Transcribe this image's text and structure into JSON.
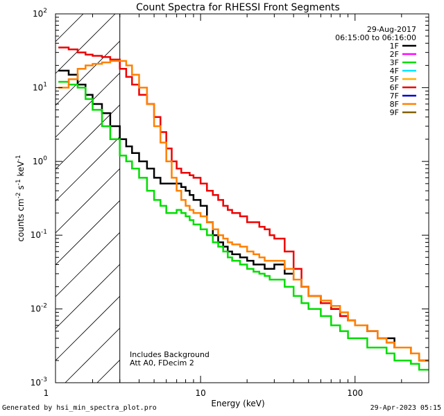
{
  "chart_data": {
    "type": "line",
    "title": "Count Spectra for RHESSI Front Segments",
    "xlabel": "Energy (keV)",
    "ylabel_parts": {
      "prefix": "counts cm",
      "exp1": "-2",
      "mid": " s",
      "exp2": "-1",
      "mid2": " keV",
      "exp3": "-1"
    },
    "xscale": "log",
    "yscale": "log",
    "xlim": [
      1.15,
      300
    ],
    "ylim": [
      0.001,
      100
    ],
    "x_ticks": [
      {
        "value": 1,
        "label": "1"
      },
      {
        "value": 10,
        "label": "10"
      },
      {
        "value": 100,
        "label": "100"
      }
    ],
    "y_ticks": [
      {
        "value": 0.001,
        "base": "10",
        "exp": "-3"
      },
      {
        "value": 0.01,
        "base": "10",
        "exp": "-2"
      },
      {
        "value": 0.1,
        "base": "10",
        "exp": "-1"
      },
      {
        "value": 1,
        "base": "10",
        "exp": "0"
      },
      {
        "value": 10,
        "base": "10",
        "exp": "1"
      },
      {
        "value": 100,
        "base": "10",
        "exp": "2"
      }
    ],
    "shaded_region": {
      "x_range": [
        1.15,
        3
      ],
      "style": "diagonal-hatch"
    },
    "legend_header": [
      "29-Aug-2017",
      "06:15:00 to 06:16:00"
    ],
    "legend": [
      {
        "name": "1F",
        "color": "#000000"
      },
      {
        "name": "2F",
        "color": "#ff00ff"
      },
      {
        "name": "3F",
        "color": "#00dd00"
      },
      {
        "name": "4F",
        "color": "#00e5ff"
      },
      {
        "name": "5F",
        "color": "#ffb000"
      },
      {
        "name": "6F",
        "color": "#ee0000"
      },
      {
        "name": "7F",
        "color": "#0000cc"
      },
      {
        "name": "8F",
        "color": "#ff8000"
      },
      {
        "name": "9F",
        "color": "#806000"
      }
    ],
    "annotation": [
      "Includes Background",
      "Att A0, FDecim 2"
    ],
    "series": [
      {
        "name": "1F",
        "color": "#000000",
        "x": [
          1.2,
          1.4,
          1.6,
          1.8,
          2.0,
          2.3,
          2.6,
          3.0,
          3.3,
          3.6,
          4.0,
          4.5,
          5.0,
          5.5,
          6.0,
          6.5,
          7.0,
          7.5,
          8.0,
          8.5,
          9,
          10,
          11,
          12,
          13,
          14,
          15,
          16,
          18,
          20,
          22,
          24,
          26,
          28,
          30,
          35,
          40,
          45,
          50,
          60,
          70,
          80,
          90,
          100,
          120,
          140,
          160,
          180,
          200,
          230,
          260,
          300
        ],
        "y": [
          17,
          15,
          11,
          8,
          6,
          4.5,
          3,
          2,
          1.6,
          1.3,
          1.0,
          0.8,
          0.6,
          0.5,
          0.5,
          0.5,
          0.5,
          0.45,
          0.4,
          0.35,
          0.3,
          0.25,
          0.15,
          0.1,
          0.08,
          0.07,
          0.06,
          0.055,
          0.05,
          0.045,
          0.04,
          0.04,
          0.035,
          0.035,
          0.04,
          0.03,
          0.025,
          0.02,
          0.015,
          0.012,
          0.01,
          0.008,
          0.007,
          0.006,
          0.005,
          0.004,
          0.004,
          0.003,
          0.003,
          0.0025,
          0.002,
          0.002
        ]
      },
      {
        "name": "3F",
        "color": "#00dd00",
        "x": [
          1.2,
          1.4,
          1.6,
          1.8,
          2.0,
          2.3,
          2.6,
          3.0,
          3.3,
          3.6,
          4.0,
          4.5,
          5.0,
          5.5,
          6.0,
          6.5,
          7.0,
          7.5,
          8.0,
          8.5,
          9,
          10,
          11,
          12,
          13,
          14,
          15,
          16,
          18,
          20,
          22,
          24,
          26,
          28,
          30,
          35,
          40,
          45,
          50,
          60,
          70,
          80,
          90,
          100,
          120,
          140,
          160,
          180,
          200,
          230,
          260,
          300
        ],
        "y": [
          12,
          11,
          10,
          7,
          5,
          3,
          2,
          1.2,
          1.0,
          0.8,
          0.6,
          0.4,
          0.3,
          0.25,
          0.2,
          0.2,
          0.22,
          0.2,
          0.18,
          0.16,
          0.14,
          0.12,
          0.1,
          0.08,
          0.07,
          0.06,
          0.05,
          0.045,
          0.04,
          0.035,
          0.032,
          0.03,
          0.028,
          0.025,
          0.025,
          0.02,
          0.015,
          0.012,
          0.01,
          0.008,
          0.006,
          0.005,
          0.004,
          0.004,
          0.003,
          0.003,
          0.0025,
          0.002,
          0.002,
          0.0018,
          0.0015,
          0.0015
        ]
      },
      {
        "name": "6F",
        "color": "#ee0000",
        "x": [
          1.2,
          1.4,
          1.6,
          1.8,
          2.0,
          2.3,
          2.6,
          3.0,
          3.3,
          3.6,
          4.0,
          4.5,
          5.0,
          5.5,
          6.0,
          6.5,
          7.0,
          7.5,
          8.0,
          8.5,
          9,
          10,
          11,
          12,
          13,
          14,
          15,
          16,
          18,
          20,
          22,
          24,
          26,
          28,
          30,
          35,
          40,
          45,
          50,
          60,
          70,
          80,
          90,
          100,
          120,
          140,
          160,
          180,
          200,
          230,
          260,
          300
        ],
        "y": [
          35,
          33,
          30,
          28,
          27,
          26,
          24,
          18,
          14,
          11,
          8,
          6,
          4,
          2.5,
          1.5,
          1.0,
          0.8,
          0.7,
          0.7,
          0.65,
          0.6,
          0.5,
          0.4,
          0.35,
          0.3,
          0.25,
          0.22,
          0.2,
          0.18,
          0.15,
          0.15,
          0.13,
          0.12,
          0.1,
          0.09,
          0.06,
          0.035,
          0.02,
          0.015,
          0.012,
          0.01,
          0.008,
          0.007,
          0.006,
          0.005,
          0.004,
          0.0035,
          0.003,
          0.003,
          0.0025,
          0.002,
          0.002
        ]
      },
      {
        "name": "8F",
        "color": "#ff8000",
        "x": [
          1.2,
          1.4,
          1.6,
          1.8,
          2.0,
          2.3,
          2.6,
          3.0,
          3.3,
          3.6,
          4.0,
          4.5,
          5.0,
          5.5,
          6.0,
          6.5,
          7.0,
          7.5,
          8.0,
          8.5,
          9,
          10,
          11,
          12,
          13,
          14,
          15,
          16,
          18,
          20,
          22,
          24,
          26,
          28,
          30,
          35,
          40,
          45,
          50,
          60,
          70,
          80,
          90,
          100,
          120,
          140,
          160,
          180,
          200,
          230,
          260,
          300
        ],
        "y": [
          10,
          13,
          18,
          20,
          21,
          22,
          23,
          23,
          20,
          15,
          10,
          6,
          3,
          1.8,
          1.0,
          0.6,
          0.4,
          0.3,
          0.25,
          0.22,
          0.2,
          0.18,
          0.15,
          0.12,
          0.1,
          0.09,
          0.08,
          0.075,
          0.07,
          0.06,
          0.055,
          0.05,
          0.045,
          0.045,
          0.045,
          0.035,
          0.025,
          0.02,
          0.015,
          0.013,
          0.011,
          0.009,
          0.007,
          0.006,
          0.005,
          0.004,
          0.0035,
          0.003,
          0.003,
          0.0025,
          0.002,
          0.002
        ]
      }
    ]
  },
  "footer": {
    "left": "Generated by hsi_min_spectra_plot.pro",
    "right": "29-Apr-2023 05:15"
  }
}
